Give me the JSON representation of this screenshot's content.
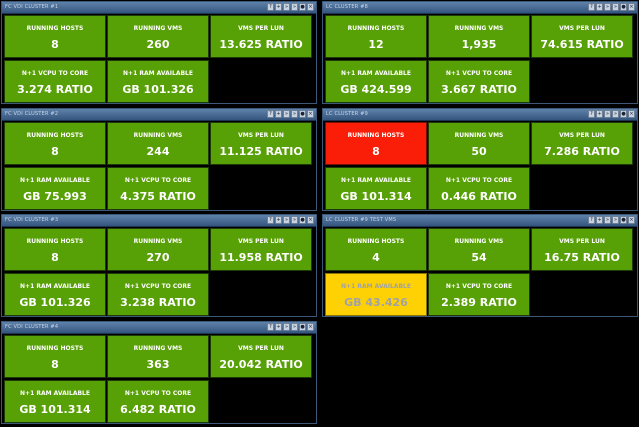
{
  "controls": [
    "?",
    "+",
    "»",
    "»",
    "●",
    "×"
  ],
  "panels": [
    {
      "title": "FC VDI CLUSTER #1",
      "tiles": [
        {
          "label": "RUNNING HOSTS",
          "value": "8",
          "status": "green"
        },
        {
          "label": "RUNNING VMS",
          "value": "260",
          "status": "green"
        },
        {
          "label": "VMS PER LUN",
          "value": "13.625 RATIO",
          "status": "green"
        },
        {
          "label": "N+1 VCPU TO CORE",
          "value": "3.274 RATIO",
          "status": "green"
        },
        {
          "label": "N+1 RAM AVAILABLE",
          "value": "GB 101.326",
          "status": "green"
        }
      ]
    },
    {
      "title": "LC CLUSTER #8",
      "tiles": [
        {
          "label": "RUNNING HOSTS",
          "value": "12",
          "status": "green"
        },
        {
          "label": "RUNNING VMS",
          "value": "1,935",
          "status": "green"
        },
        {
          "label": "VMS PER LUN",
          "value": "74.615 RATIO",
          "status": "green"
        },
        {
          "label": "N+1 RAM AVAILABLE",
          "value": "GB 424.599",
          "status": "green"
        },
        {
          "label": "N+1 VCPU TO CORE",
          "value": "3.667 RATIO",
          "status": "green"
        }
      ]
    },
    {
      "title": "FC VDI CLUSTER #2",
      "tiles": [
        {
          "label": "RUNNING HOSTS",
          "value": "8",
          "status": "green"
        },
        {
          "label": "RUNNING VMS",
          "value": "244",
          "status": "green"
        },
        {
          "label": "VMS PER LUN",
          "value": "11.125 RATIO",
          "status": "green"
        },
        {
          "label": "N+1 RAM AVAILABLE",
          "value": "GB 75.993",
          "status": "green"
        },
        {
          "label": "N+1 VCPU TO CORE",
          "value": "4.375 RATIO",
          "status": "green"
        }
      ]
    },
    {
      "title": "LC CLUSTER #9",
      "tiles": [
        {
          "label": "RUNNING HOSTS",
          "value": "8",
          "status": "red"
        },
        {
          "label": "RUNNING VMS",
          "value": "50",
          "status": "green"
        },
        {
          "label": "VMS PER LUN",
          "value": "7.286 RATIO",
          "status": "green"
        },
        {
          "label": "N+1 RAM AVAILABLE",
          "value": "GB 101.314",
          "status": "green"
        },
        {
          "label": "N+1 VCPU TO CORE",
          "value": "0.446 RATIO",
          "status": "green"
        }
      ]
    },
    {
      "title": "FC VDI CLUSTER #3",
      "tiles": [
        {
          "label": "RUNNING HOSTS",
          "value": "8",
          "status": "green"
        },
        {
          "label": "RUNNING VMS",
          "value": "270",
          "status": "green"
        },
        {
          "label": "VMS PER LUN",
          "value": "11.958 RATIO",
          "status": "green"
        },
        {
          "label": "N+1 RAM AVAILABLE",
          "value": "GB 101.326",
          "status": "green"
        },
        {
          "label": "N+1 VCPU TO CORE",
          "value": "3.238 RATIO",
          "status": "green"
        }
      ]
    },
    {
      "title": "LC CLUSTER #9 TEST VMS",
      "tiles": [
        {
          "label": "RUNNING HOSTS",
          "value": "4",
          "status": "green"
        },
        {
          "label": "RUNNING VMS",
          "value": "54",
          "status": "green"
        },
        {
          "label": "VMS PER LUN",
          "value": "16.75 RATIO",
          "status": "green"
        },
        {
          "label": "N+1 RAM AVAILABLE",
          "value": "GB 43.426",
          "status": "yellow"
        },
        {
          "label": "N+1 VCPU TO CORE",
          "value": "2.389 RATIO",
          "status": "green"
        }
      ]
    },
    {
      "title": "FC VDI CLUSTER #4",
      "tiles": [
        {
          "label": "RUNNING HOSTS",
          "value": "8",
          "status": "green"
        },
        {
          "label": "RUNNING VMS",
          "value": "363",
          "status": "green"
        },
        {
          "label": "VMS PER LUN",
          "value": "20.042 RATIO",
          "status": "green"
        },
        {
          "label": "N+1 RAM AVAILABLE",
          "value": "GB 101.314",
          "status": "green"
        },
        {
          "label": "N+1 VCPU TO CORE",
          "value": "6.482 RATIO",
          "status": "green"
        }
      ]
    }
  ]
}
